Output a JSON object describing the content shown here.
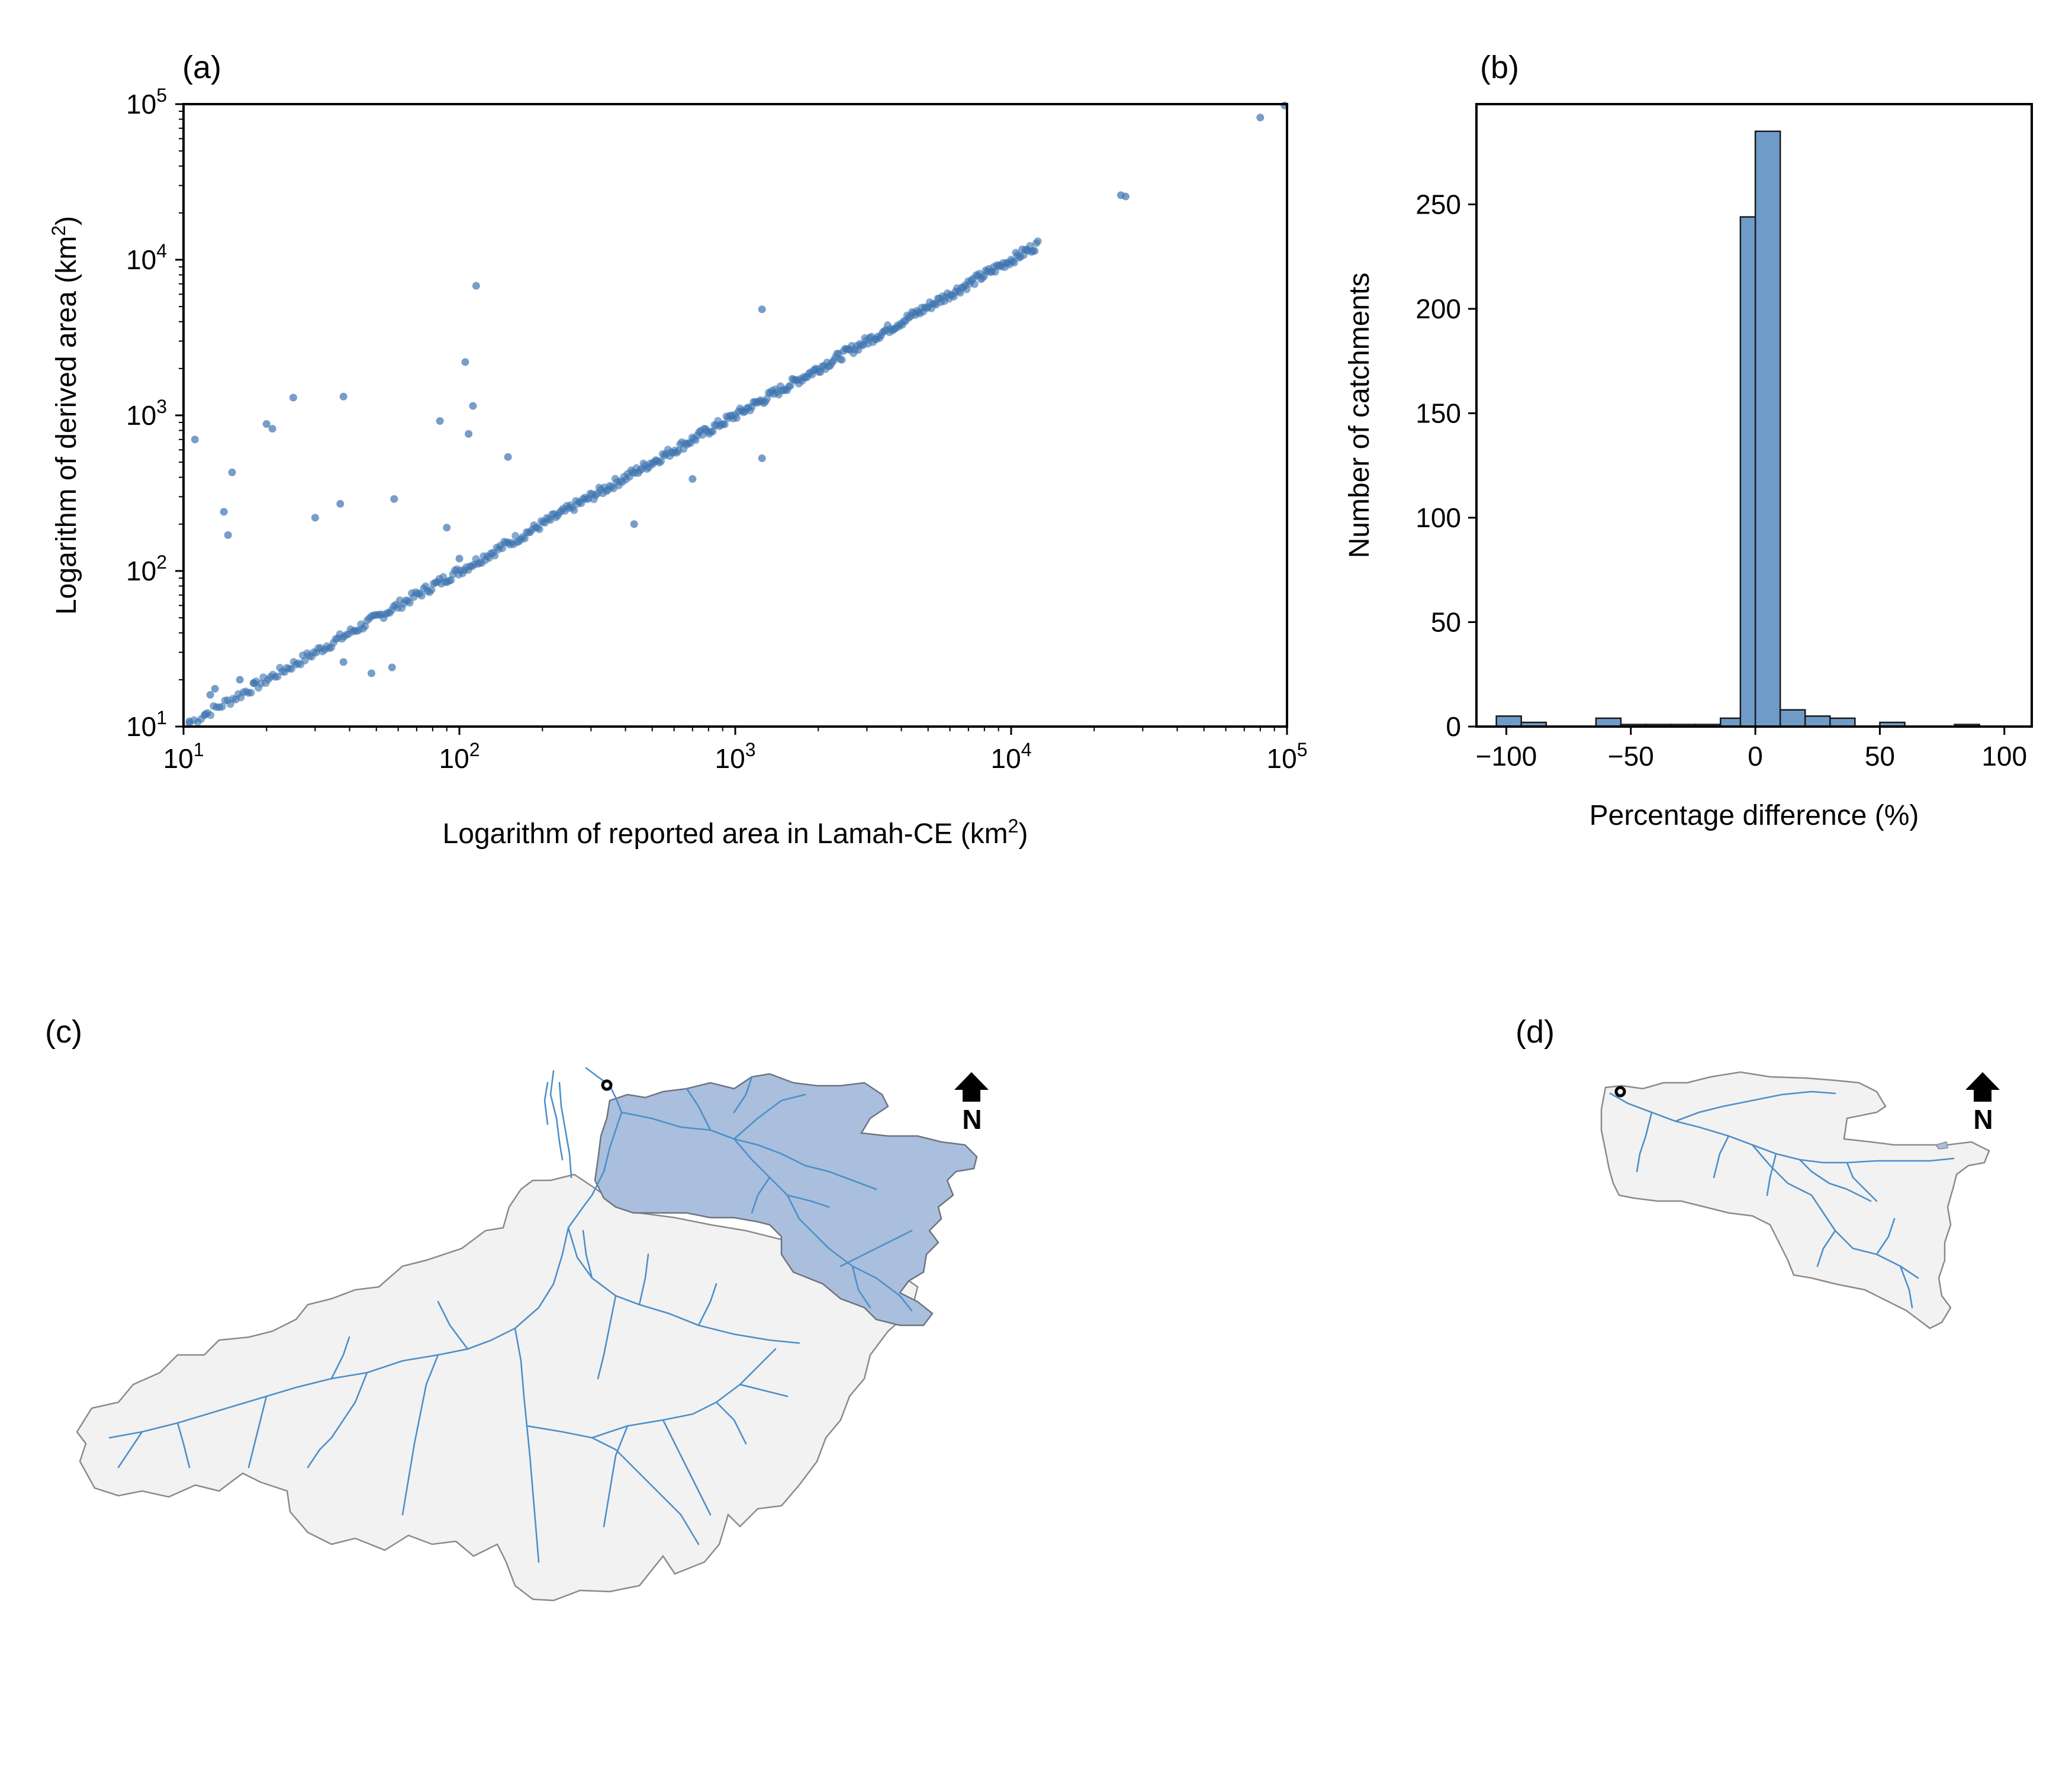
{
  "panels": {
    "a": "(a)",
    "b": "(b)",
    "c": "(c)",
    "d": "(d)"
  },
  "colors": {
    "point": "#3d74b0",
    "bar_fill": "#6f9bc8",
    "bar_edge": "#1a1a1a",
    "catchment_fill": "#f2f2f2",
    "catchment_edge": "#8a8a8a",
    "subcatchment_fill": "#a9bfdd",
    "river": "#4d8fc9",
    "north_arrow": "#000000"
  },
  "north_arrow": {
    "label": "N",
    "icon": "north-arrow-icon"
  },
  "outlet_marker": {
    "icon": "gauge-circle-icon"
  },
  "chart_data": [
    {
      "id": "a",
      "type": "scatter",
      "xlabel_prefix": "Logarithm of reported area in Lamah-CE (km",
      "xlabel_sup": "2",
      "xlabel_suffix": ")",
      "ylabel_prefix": "Logarithm of derived area (km",
      "ylabel_sup": "2",
      "ylabel_suffix": ")",
      "xscale": "log",
      "yscale": "log",
      "xlim": [
        10,
        100000
      ],
      "ylim": [
        10,
        100000
      ],
      "xticks": [
        {
          "base": "10",
          "exp": "1"
        },
        {
          "base": "10",
          "exp": "2"
        },
        {
          "base": "10",
          "exp": "3"
        },
        {
          "base": "10",
          "exp": "4"
        },
        {
          "base": "10",
          "exp": "5"
        }
      ],
      "yticks": [
        {
          "base": "10",
          "exp": "1"
        },
        {
          "base": "10",
          "exp": "2"
        },
        {
          "base": "10",
          "exp": "3"
        },
        {
          "base": "10",
          "exp": "4"
        },
        {
          "base": "10",
          "exp": "5"
        }
      ],
      "diagonal": {
        "from": 10.5,
        "to": 12500,
        "count": 460,
        "jitter": 0.03
      },
      "outliers": [
        [
          11,
          700
        ],
        [
          14,
          240
        ],
        [
          14.5,
          170
        ],
        [
          15,
          430
        ],
        [
          20,
          880
        ],
        [
          21,
          820
        ],
        [
          25,
          1300
        ],
        [
          30,
          220
        ],
        [
          37,
          270
        ],
        [
          38,
          1320
        ],
        [
          58,
          290
        ],
        [
          85,
          920
        ],
        [
          90,
          190
        ],
        [
          105,
          2200
        ],
        [
          108,
          760
        ],
        [
          112,
          1150
        ],
        [
          115,
          6800
        ],
        [
          100,
          120
        ],
        [
          150,
          540
        ],
        [
          1250,
          4800
        ],
        [
          1250,
          530
        ],
        [
          430,
          200
        ],
        [
          700,
          390
        ],
        [
          25000,
          26000
        ],
        [
          26000,
          25500
        ],
        [
          80000,
          82000
        ],
        [
          98000,
          98000
        ],
        [
          48,
          22
        ],
        [
          57,
          24
        ],
        [
          38,
          26
        ],
        [
          10.5,
          10.8
        ],
        [
          12,
          12
        ],
        [
          12.5,
          16
        ],
        [
          13,
          17.5
        ],
        [
          16,
          20
        ],
        [
          18,
          19
        ]
      ]
    },
    {
      "id": "b",
      "type": "bar",
      "xlabel": "Percentage difference (%)",
      "ylabel": "Number of catchments",
      "xlim": [
        -112,
        111
      ],
      "ylim": [
        0,
        298
      ],
      "xticks": [
        {
          "v": -100,
          "label": "−100"
        },
        {
          "v": -50,
          "label": "−50"
        },
        {
          "v": 0,
          "label": "0"
        },
        {
          "v": 50,
          "label": "50"
        },
        {
          "v": 100,
          "label": "100"
        }
      ],
      "yticks": [
        0,
        50,
        100,
        150,
        200,
        250
      ],
      "bin_width": 10,
      "bins": [
        {
          "left": -104,
          "count": 5
        },
        {
          "left": -94,
          "count": 2
        },
        {
          "left": -64,
          "count": 4
        },
        {
          "left": -54,
          "count": 1
        },
        {
          "left": -44,
          "count": 1
        },
        {
          "left": -34,
          "count": 1
        },
        {
          "left": -24,
          "count": 1
        },
        {
          "left": -14,
          "count": 4
        },
        {
          "left": -6,
          "count": 244
        },
        {
          "left": 0,
          "count": 285
        },
        {
          "left": 10,
          "count": 8
        },
        {
          "left": 20,
          "count": 5
        },
        {
          "left": 30,
          "count": 4
        },
        {
          "left": 50,
          "count": 2
        },
        {
          "left": 80,
          "count": 1
        }
      ]
    }
  ]
}
